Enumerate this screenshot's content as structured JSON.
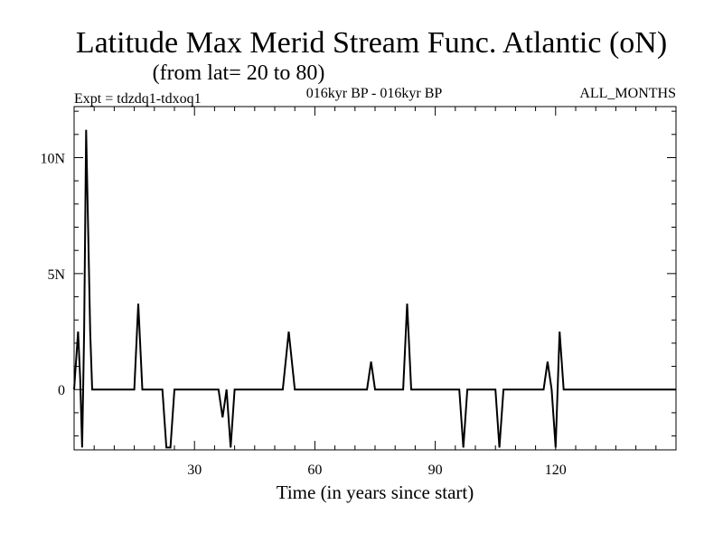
{
  "chart_data": {
    "type": "line",
    "title": "Latitude Max Merid Stream Func. Atlantic (oN)",
    "subtitle": "(from lat= 20 to 80)",
    "experiment": "Expt = tdzdq1-tdxoq1",
    "period": "016kyr BP - 016kyr BP",
    "months": "ALL_MONTHS",
    "xlabel": "Time (in years since start)",
    "ylabel": "",
    "xlim": [
      0,
      150
    ],
    "ylim": [
      -2.6,
      12.2
    ],
    "xticks": [
      30,
      60,
      90,
      120
    ],
    "xtick_labels": [
      "30",
      "60",
      "90",
      "120"
    ],
    "yticks": [
      0,
      5,
      10
    ],
    "ytick_labels": [
      "0",
      "5N",
      "10N"
    ],
    "grid": false,
    "series": [
      {
        "name": "Latitude Max Merid Stream Func.",
        "x": [
          0,
          1,
          1.5,
          2,
          2.5,
          3,
          3.3,
          3.6,
          4,
          4.5,
          5,
          15,
          16,
          17,
          22,
          23,
          24,
          25,
          36,
          37,
          38,
          39,
          40,
          41,
          49,
          52,
          53.5,
          55,
          73,
          74,
          75,
          82,
          83,
          84,
          96,
          97,
          98,
          105,
          106,
          107,
          117,
          118,
          119,
          120,
          121,
          122,
          150
        ],
        "y": [
          0,
          2.5,
          0.5,
          -2.5,
          2.5,
          11.2,
          8.5,
          6.0,
          2.5,
          0,
          0,
          0,
          3.7,
          0,
          0,
          -2.5,
          -2.5,
          0,
          0,
          -1.2,
          0,
          -2.5,
          0,
          0,
          0,
          0,
          2.5,
          0,
          0,
          1.2,
          0,
          0,
          3.7,
          0,
          0,
          -2.5,
          0,
          0,
          -2.5,
          0,
          0,
          1.2,
          0,
          -2.5,
          2.5,
          0,
          0
        ]
      }
    ]
  }
}
